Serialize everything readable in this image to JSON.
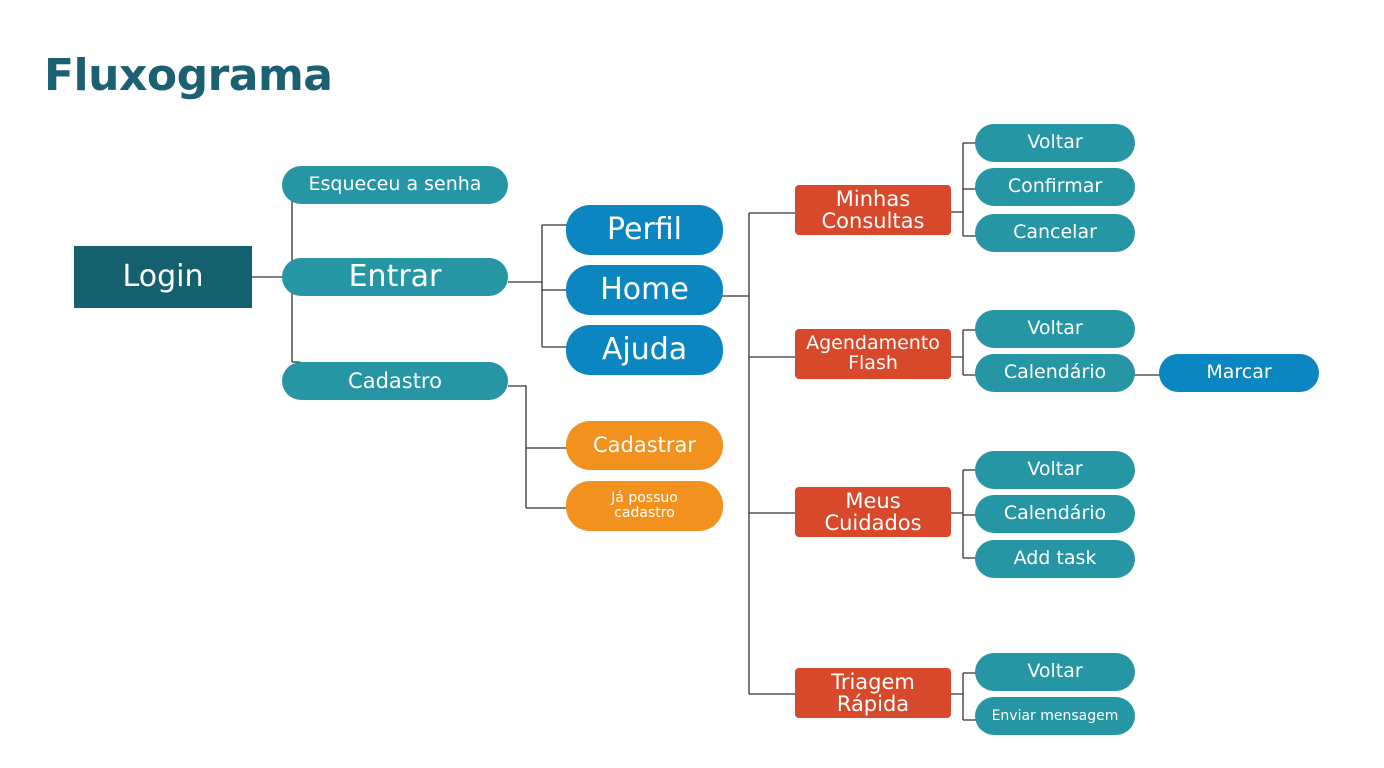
{
  "title": "Fluxograma",
  "colors": {
    "title": "#1c6073",
    "login": "#14606f",
    "teal": "#2696a4",
    "blue": "#0b86c0",
    "orange": "#f2911e",
    "red": "#d8482a",
    "connector": "#333333"
  },
  "nodes": {
    "login": "Login",
    "esqueceu_senha": "Esqueceu a senha",
    "entrar": "Entrar",
    "cadastro": "Cadastro",
    "perfil": "Perfil",
    "home": "Home",
    "ajuda": "Ajuda",
    "cadastrar": "Cadastrar",
    "ja_possuo_cadastro": "Já possuo cadastro",
    "minhas_consultas": "Minhas Consultas",
    "agendamento_flash": "Agendamento Flash",
    "meus_cuidados": "Meus Cuidados",
    "triagem_rapida": "Triagem Rápida",
    "mc_voltar": "Voltar",
    "mc_confirmar": "Confirmar",
    "mc_cancelar": "Cancelar",
    "af_voltar": "Voltar",
    "af_calendario": "Calendário",
    "af_marcar": "Marcar",
    "mcu_voltar": "Voltar",
    "mcu_calendario": "Calendário",
    "mcu_add_task": "Add task",
    "tr_voltar": "Voltar",
    "tr_enviar_mensagem": "Enviar mensagem"
  }
}
